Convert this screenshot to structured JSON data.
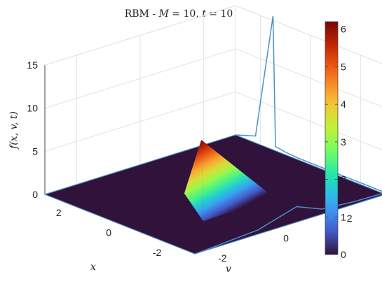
{
  "chart_data": {
    "type": "surface",
    "title": "RBM - M = 10, t = 10",
    "title_parts": {
      "prefix": "RBM - ",
      "m_symbol": "M",
      "m_eq": " = 10, ",
      "t_symbol": "t",
      "t_eq": " = 10"
    },
    "xlabel": "x",
    "ylabel": "v",
    "zlabel": "f(x, v, t)",
    "xlim": [
      -3,
      3
    ],
    "ylim": [
      -3,
      3
    ],
    "zlim": [
      0,
      15
    ],
    "x_ticks": [
      "-2",
      "0",
      "2"
    ],
    "y_ticks": [
      "-2",
      "0",
      "2"
    ],
    "z_ticks": [
      "0",
      "5",
      "10",
      "15"
    ],
    "x_tick_values": [
      -2,
      0,
      2
    ],
    "y_tick_values": [
      -2,
      0,
      2
    ],
    "z_tick_values": [
      0,
      5,
      10,
      15
    ],
    "grid": true,
    "colorbar": {
      "ticks": [
        "0",
        "1",
        "2",
        "3",
        "4",
        "5",
        "6"
      ],
      "tick_values": [
        0,
        1,
        2,
        3,
        4,
        5,
        6
      ],
      "range": [
        0,
        6.2
      ],
      "colormap": "turbo",
      "placement": "right"
    },
    "surface": {
      "base_value": 0,
      "base_color": "#30123b",
      "peak": {
        "x": 0.3,
        "v": -0.2,
        "f": 6.2
      },
      "ridge_end": {
        "x": -1.2,
        "v": 0.9,
        "f": 0
      },
      "side_a": {
        "x": 0.6,
        "v": -0.5,
        "f": 0
      },
      "side_b": {
        "x": -1.3,
        "v": -1.4,
        "f": 0
      }
    },
    "line_series": {
      "color": "#4a90c8",
      "points": [
        [
          3,
          3,
          0
        ],
        [
          2.2,
          3,
          0.8
        ],
        [
          1.5,
          3,
          15.5
        ],
        [
          1.4,
          3,
          0.5
        ],
        [
          1.0,
          3,
          0.3
        ],
        [
          0.5,
          3,
          0.2
        ],
        [
          -1.5,
          3,
          0.2
        ],
        [
          -3,
          3,
          0.2
        ],
        [
          -3,
          2,
          0.3
        ],
        [
          -3,
          1,
          0.6
        ],
        [
          -3,
          0.2,
          1.8
        ],
        [
          -3,
          -1,
          0.5
        ],
        [
          -3,
          -2.5,
          0.1
        ],
        [
          -3,
          -3,
          0
        ]
      ]
    }
  }
}
